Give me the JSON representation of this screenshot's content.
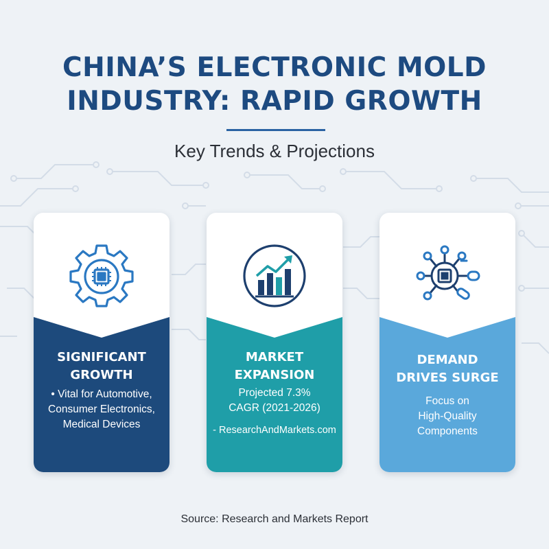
{
  "header": {
    "title_line1": "CHINA’S ELECTRONIC MOLD",
    "title_line2": "INDUSTRY: RAPID GROWTH",
    "subtitle": "Key Trends & Projections"
  },
  "cards": [
    {
      "icon": "gear-chip-icon",
      "heading_line1": "SIGNIFICANT",
      "heading_line2": "GROWTH",
      "body_lines": [
        "• Vital for Automotive,",
        "Consumer Electronics,",
        "Medical Devices"
      ]
    },
    {
      "icon": "growth-chart-icon",
      "heading_line1": "MARKET",
      "heading_line2": "EXPANSION",
      "body_lines": [
        "Projected 7.3%",
        "CAGR (2021-2026)"
      ],
      "source_note": "- ResearchAndMarkets.com"
    },
    {
      "icon": "chip-network-icon",
      "heading_line1": "DEMAND",
      "heading_line2": "DRIVES SURGE",
      "body_lines": [
        "Focus on",
        "High-Quality",
        "Components"
      ]
    }
  ],
  "footer": {
    "source": "Source: Research and Markets Report"
  },
  "colors": {
    "background": "#eef2f6",
    "title": "#1d4a80",
    "card1": "#1d4a7c",
    "card2": "#1f9ea8",
    "card3": "#5aa8db",
    "icon_blue": "#2a78c2",
    "icon_navy": "#1d3f6e"
  }
}
